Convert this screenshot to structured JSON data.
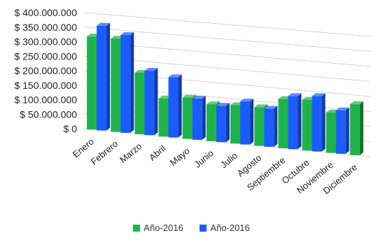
{
  "chart_data": {
    "type": "bar",
    "three_d": true,
    "categories": [
      "Enero",
      "Febrero",
      "Marzo",
      "Abril",
      "Mayo",
      "Junio",
      "Julio",
      "Agosto",
      "Septiembre",
      "Octubre",
      "Noviembre",
      "Diciembre"
    ],
    "series": [
      {
        "name": "Año-2016",
        "color": "#1db34a",
        "values": [
          320000000,
          320000000,
          210000000,
          130000000,
          140000000,
          125000000,
          130000000,
          130000000,
          165000000,
          170000000,
          135000000,
          170000000
        ]
      },
      {
        "name": "Año-2016",
        "color": "#1a5cff",
        "values": [
          360000000,
          335000000,
          220000000,
          205000000,
          140000000,
          123000000,
          145000000,
          128000000,
          178000000,
          185000000,
          145000000,
          null
        ]
      }
    ],
    "y_ticks": [
      "$ 400.000.000",
      "$ 350.000.000",
      "$ 300.000.000",
      "$ 250.000.000",
      "$ 200.000.000",
      "$ 150.000.000",
      "$ 100.000.000",
      "$ 50.000.000",
      "$ 0"
    ],
    "ylim": [
      0,
      400000000
    ],
    "grid": true,
    "legend_position": "bottom",
    "title": "",
    "xlabel": "",
    "ylabel": ""
  }
}
